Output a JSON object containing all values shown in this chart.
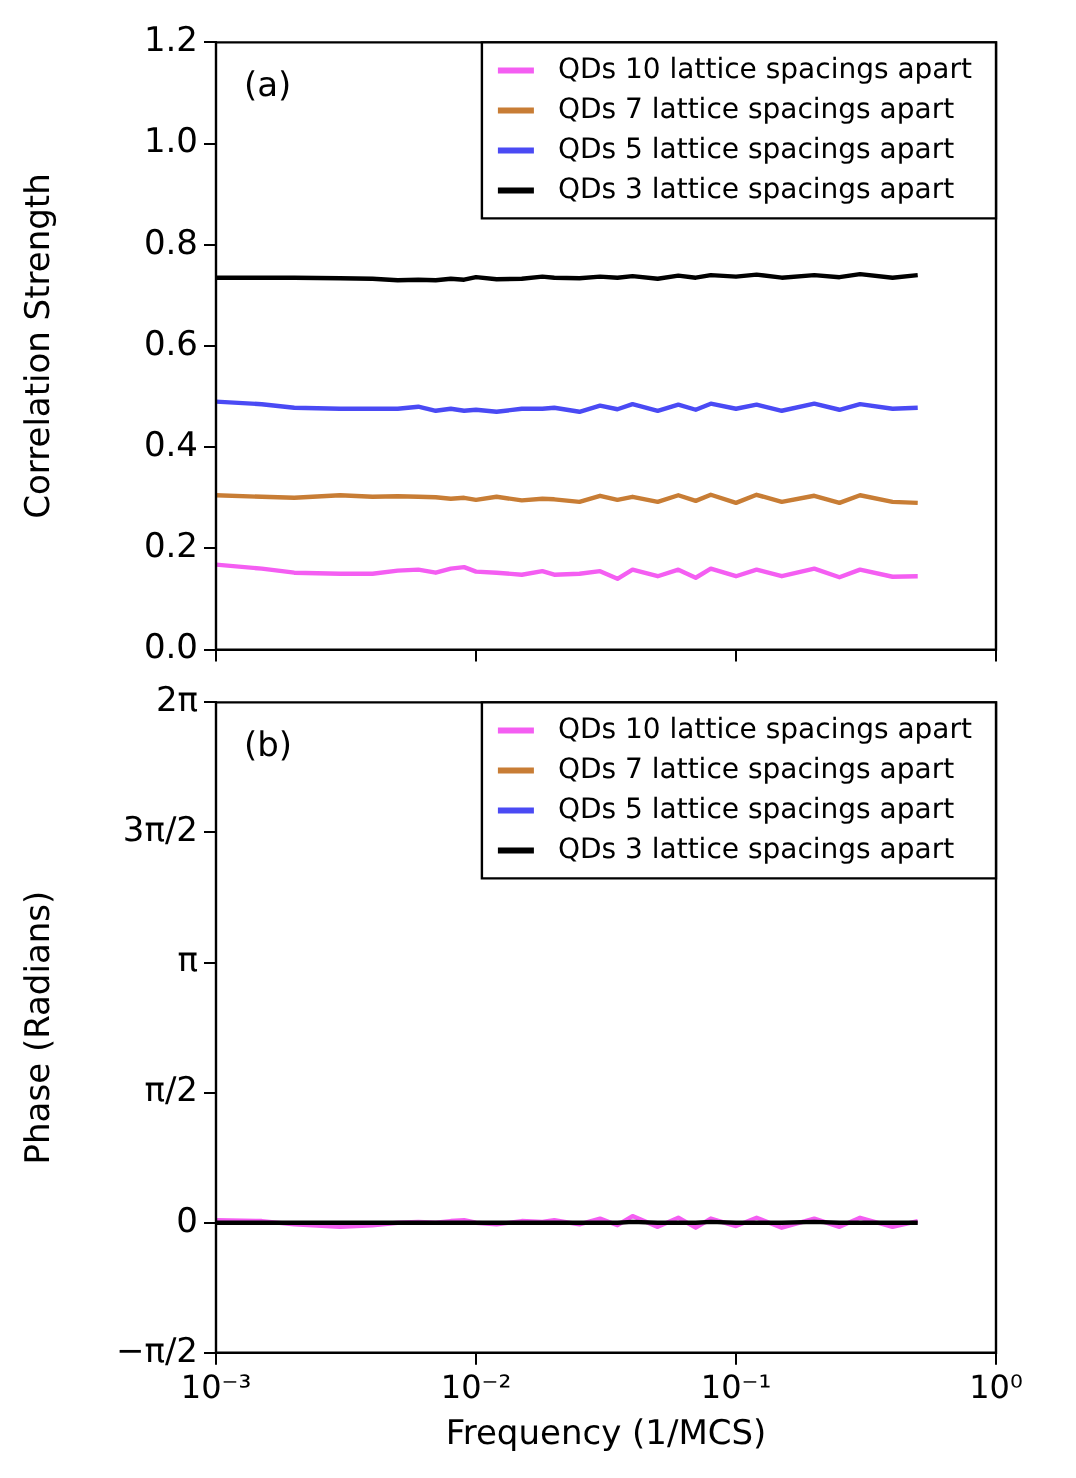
{
  "chart_data": [
    {
      "type": "line",
      "ylabel": "Correlation Strength",
      "annotations": [
        "(a)"
      ],
      "legend": "top right",
      "grid": false,
      "marker": "none",
      "line_style": "solid",
      "tick_labels": "y",
      "log": "x",
      "xlim": [
        0.001,
        1
      ],
      "xticks": [
        {
          "value": 0.001,
          "label": null
        },
        {
          "value": 0.01,
          "label": null
        },
        {
          "value": 0.1,
          "label": null
        },
        {
          "value": 1,
          "label": null
        }
      ],
      "ylim": [
        0,
        1.2
      ],
      "yticks": [
        {
          "value": 0,
          "label": "0.0"
        },
        {
          "value": 0.2,
          "label": "0.2"
        },
        {
          "value": 0.4,
          "label": "0.4"
        },
        {
          "value": 0.6,
          "label": "0.6"
        },
        {
          "value": 0.8,
          "label": "0.8"
        },
        {
          "value": 1,
          "label": "1.0"
        },
        {
          "value": 1.2,
          "label": "1.2"
        }
      ],
      "x": [
        0.001,
        0.0015,
        0.002,
        0.003,
        0.004,
        0.005,
        0.006,
        0.007,
        0.008,
        0.009,
        0.01,
        0.012,
        0.015,
        0.018,
        0.02,
        0.025,
        0.03,
        0.035,
        0.04,
        0.05,
        0.06,
        0.07,
        0.08,
        0.1,
        0.12,
        0.15,
        0.2,
        0.25,
        0.3,
        0.4,
        0.5
      ],
      "series": [
        {
          "name": "QDs 10 lattice spacings apart",
          "color": "#f45ef2",
          "values": [
            0.168,
            0.16,
            0.152,
            0.15,
            0.15,
            0.156,
            0.158,
            0.152,
            0.16,
            0.163,
            0.154,
            0.152,
            0.148,
            0.155,
            0.148,
            0.15,
            0.155,
            0.14,
            0.158,
            0.145,
            0.158,
            0.142,
            0.16,
            0.145,
            0.158,
            0.145,
            0.16,
            0.143,
            0.158,
            0.144,
            0.145
          ]
        },
        {
          "name": "QDs 7 lattice spacings apart",
          "color": "#c87d35",
          "values": [
            0.305,
            0.302,
            0.3,
            0.305,
            0.302,
            0.303,
            0.302,
            0.301,
            0.298,
            0.3,
            0.296,
            0.302,
            0.295,
            0.298,
            0.297,
            0.292,
            0.304,
            0.296,
            0.302,
            0.292,
            0.305,
            0.294,
            0.306,
            0.29,
            0.306,
            0.292,
            0.304,
            0.29,
            0.305,
            0.292,
            0.29
          ]
        },
        {
          "name": "QDs 5 lattice spacings apart",
          "color": "#4a4af4",
          "values": [
            0.49,
            0.485,
            0.478,
            0.476,
            0.476,
            0.476,
            0.48,
            0.472,
            0.476,
            0.472,
            0.474,
            0.47,
            0.476,
            0.476,
            0.478,
            0.47,
            0.482,
            0.475,
            0.485,
            0.472,
            0.484,
            0.474,
            0.486,
            0.476,
            0.484,
            0.472,
            0.486,
            0.474,
            0.485,
            0.476,
            0.478
          ]
        },
        {
          "name": "QDs 3 lattice spacings apart",
          "color": "#000000",
          "values": [
            0.735,
            0.735,
            0.735,
            0.734,
            0.733,
            0.73,
            0.731,
            0.73,
            0.733,
            0.731,
            0.736,
            0.732,
            0.733,
            0.737,
            0.735,
            0.734,
            0.737,
            0.735,
            0.738,
            0.733,
            0.739,
            0.735,
            0.74,
            0.737,
            0.741,
            0.735,
            0.74,
            0.736,
            0.742,
            0.735,
            0.74
          ]
        }
      ]
    },
    {
      "type": "line",
      "xlabel": "Frequency (1/MCS)",
      "ylabel": "Phase (Radians)",
      "annotations": [
        "(b)"
      ],
      "legend": "top right",
      "grid": false,
      "marker": "none",
      "line_style": "solid",
      "log": "x",
      "xlim": [
        0.001,
        1
      ],
      "xticks": [
        {
          "value": 0.001,
          "label": "10⁻³"
        },
        {
          "value": 0.01,
          "label": "10⁻²"
        },
        {
          "value": 0.1,
          "label": "10⁻¹"
        },
        {
          "value": 1,
          "label": "10⁰"
        }
      ],
      "ylim": [
        -1.5708,
        6.2832
      ],
      "yticks": [
        {
          "value": -1.5708,
          "label": "−π/2"
        },
        {
          "value": 0,
          "label": "0"
        },
        {
          "value": 1.5708,
          "label": "π/2"
        },
        {
          "value": 3.1416,
          "label": "π"
        },
        {
          "value": 4.7124,
          "label": "3π/2"
        },
        {
          "value": 6.2832,
          "label": "2π"
        }
      ],
      "x": [
        0.001,
        0.0015,
        0.002,
        0.003,
        0.004,
        0.005,
        0.006,
        0.007,
        0.008,
        0.009,
        0.01,
        0.012,
        0.015,
        0.018,
        0.02,
        0.025,
        0.03,
        0.035,
        0.04,
        0.05,
        0.06,
        0.07,
        0.08,
        0.1,
        0.12,
        0.15,
        0.2,
        0.25,
        0.3,
        0.4,
        0.5
      ],
      "series": [
        {
          "name": "QDs 10 lattice spacings apart",
          "color": "#f45ef2",
          "values": [
            0.03,
            0.02,
            -0.02,
            -0.05,
            -0.03,
            0,
            0.01,
            0,
            0.02,
            0.03,
            0,
            -0.02,
            0.02,
            0.01,
            0.03,
            -0.02,
            0.05,
            -0.03,
            0.08,
            -0.05,
            0.06,
            -0.06,
            0.05,
            -0.04,
            0.06,
            -0.06,
            0.05,
            -0.05,
            0.06,
            -0.05,
            0.02
          ]
        },
        {
          "name": "QDs 7 lattice spacings apart",
          "color": "#c87d35",
          "values": [
            null,
            null,
            null,
            null,
            null,
            null,
            null,
            null,
            null,
            null,
            null,
            null,
            null,
            null,
            null,
            null,
            null,
            null,
            null,
            null,
            null,
            null,
            null,
            null,
            null,
            null,
            null,
            null,
            null,
            null,
            null
          ]
        },
        {
          "name": "QDs 5 lattice spacings apart",
          "color": "#4a4af4",
          "values": [
            null,
            null,
            null,
            null,
            null,
            null,
            null,
            null,
            null,
            null,
            null,
            null,
            null,
            null,
            null,
            null,
            null,
            null,
            null,
            null,
            null,
            null,
            null,
            null,
            null,
            null,
            null,
            null,
            null,
            null,
            null
          ]
        },
        {
          "name": "QDs 3 lattice spacings apart",
          "color": "#000000",
          "values": [
            0,
            0,
            0,
            0,
            0,
            0,
            0,
            0,
            0,
            0,
            0,
            0,
            0,
            0,
            0,
            0,
            0,
            0,
            0.01,
            0,
            0,
            0,
            0.01,
            0,
            0,
            0,
            0.01,
            0,
            0,
            0,
            0
          ]
        }
      ]
    }
  ]
}
